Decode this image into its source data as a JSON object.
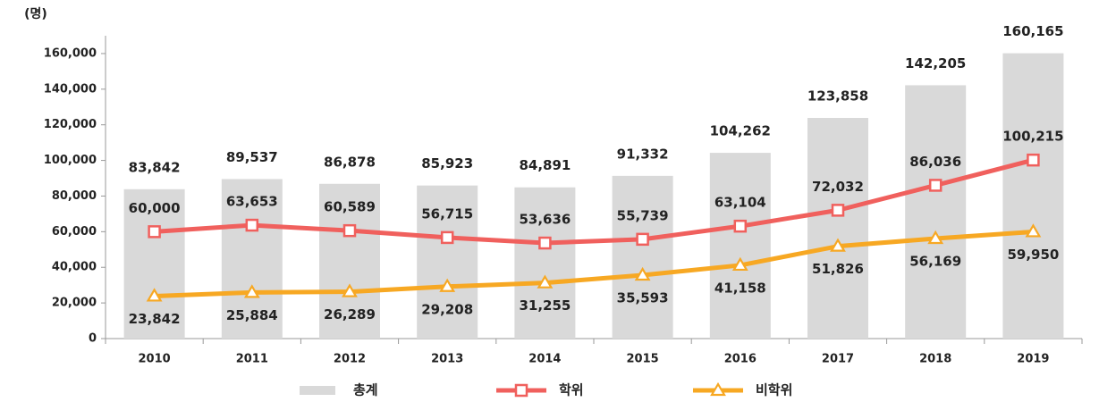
{
  "chart_data": {
    "type": "combo",
    "y_label": "(명)",
    "categories": [
      "2010",
      "2011",
      "2012",
      "2013",
      "2014",
      "2015",
      "2016",
      "2017",
      "2018",
      "2019"
    ],
    "series": [
      {
        "name": "총계",
        "type": "bar",
        "color": "#d9d9d9",
        "values": [
          83842,
          89537,
          86878,
          85923,
          84891,
          91332,
          104262,
          123858,
          142205,
          160165
        ],
        "value_labels": [
          "83,842",
          "89,537",
          "86,878",
          "85,923",
          "84,891",
          "91,332",
          "104,262",
          "123,858",
          "142,205",
          "160,165"
        ]
      },
      {
        "name": "학위",
        "type": "line",
        "marker": "square",
        "color": "#f0605d",
        "values": [
          60000,
          63653,
          60589,
          56715,
          53636,
          55739,
          63104,
          72032,
          86036,
          100215
        ],
        "value_labels": [
          "60,000",
          "63,653",
          "60,589",
          "56,715",
          "53,636",
          "55,739",
          "63,104",
          "72,032",
          "86,036",
          "100,215"
        ]
      },
      {
        "name": "비학위",
        "type": "line",
        "marker": "triangle",
        "color": "#f7a823",
        "values": [
          23842,
          25884,
          26289,
          29208,
          31255,
          35593,
          41158,
          51826,
          56169,
          59950
        ],
        "value_labels": [
          "23,842",
          "25,884",
          "26,289",
          "29,208",
          "31,255",
          "35,593",
          "41,158",
          "51,826",
          "56,169",
          "59,950"
        ]
      }
    ],
    "ylim": [
      0,
      170000
    ],
    "yticks": [
      0,
      {
        "value": 20000,
        "label": "20,000"
      },
      {
        "value": 40000,
        "label": "40,000"
      },
      {
        "value": 60000,
        "label": "60,000"
      },
      {
        "value": 80000,
        "label": "80,000"
      },
      {
        "value": 100000,
        "label": "100,000"
      },
      {
        "value": 120000,
        "label": "120,000"
      },
      {
        "value": 140000,
        "label": "140,000"
      },
      {
        "value": 160000,
        "label": "160,000"
      }
    ],
    "grid": false
  }
}
